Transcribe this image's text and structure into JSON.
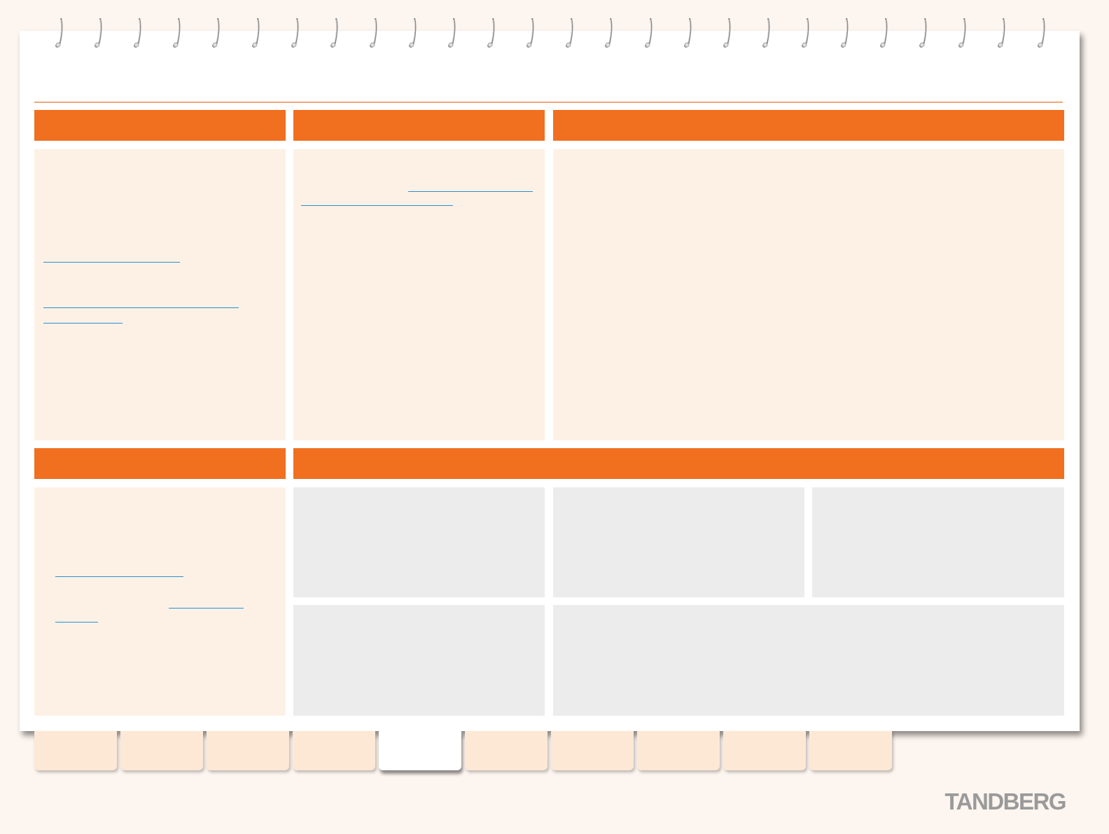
{
  "brand": {
    "logo_text": "TANDBERG"
  },
  "colors": {
    "page_background": "#fdf5ef",
    "header_band": "#f07020",
    "content_panel": "#fdf1e6",
    "grey_panel": "#ececec",
    "link_underline": "#2b8fd0",
    "tab": "#fde8d6",
    "active_tab": "#ffffff"
  },
  "binder": {
    "ring_count": 26
  },
  "tabs": {
    "count": 10,
    "active_index": 4
  }
}
